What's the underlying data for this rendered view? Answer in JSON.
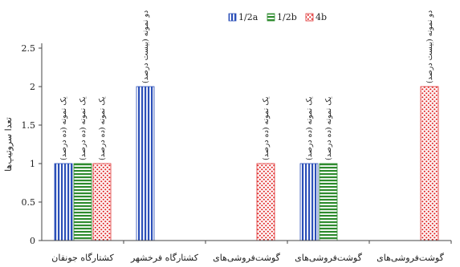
{
  "chart_data": {
    "type": "bar",
    "title": "",
    "xlabel": "",
    "ylabel": "تعدا سروتیپ‌ها",
    "ylim": [
      0,
      2.5
    ],
    "yticks": [
      "0",
      "0.5",
      "1",
      "1.5",
      "2",
      "2.5"
    ],
    "grid": false,
    "legend_position": "top",
    "categories": [
      "کشتارگاه جونقان",
      "کشتارگاه فرخشهر",
      "گوشت‌فروشی‌های",
      "گوشت‌فروشی‌های",
      "گوشت‌فروشی‌های"
    ],
    "series": [
      {
        "name": "1/2a",
        "color": "#2b4fb8",
        "pattern": "vertical-stripes",
        "values": [
          1,
          2,
          0,
          1,
          0
        ],
        "labels": [
          "یک نمونه (ده درصد)",
          "دو نمونه (بیست درصد)",
          "",
          "یک نمونه (ده درصد)",
          ""
        ]
      },
      {
        "name": "1/2b",
        "color": "#2e8b2e",
        "pattern": "horizontal-stripes",
        "values": [
          1,
          0,
          0,
          1,
          0
        ],
        "labels": [
          "یک نمونه (ده درصد)",
          "",
          "",
          "یک نمونه (ده درصد)",
          ""
        ]
      },
      {
        "name": "4b",
        "color": "#e03030",
        "pattern": "dots",
        "values": [
          1,
          0,
          1,
          0,
          2
        ],
        "labels": [
          "یک نمونه (ده درصد)",
          "",
          "یک نمونه (ده درصد)",
          "",
          "دو نمونه (بیست درصد)"
        ]
      }
    ]
  }
}
